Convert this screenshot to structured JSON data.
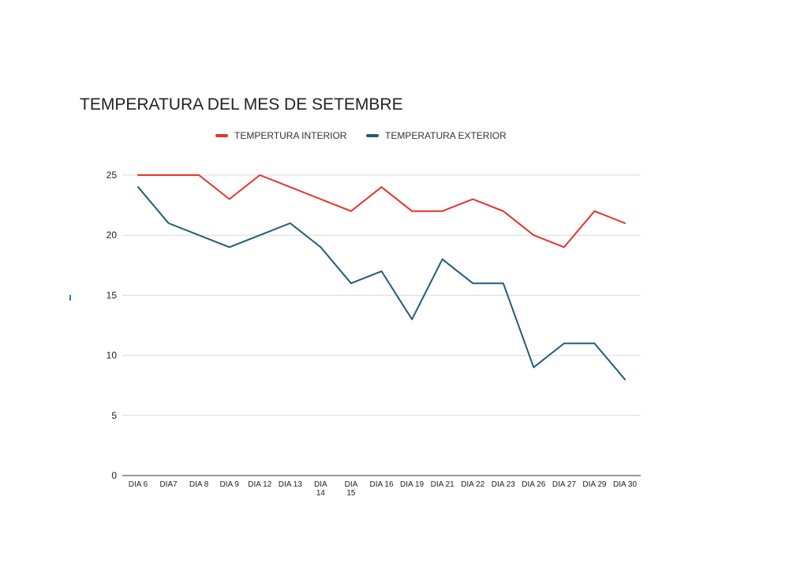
{
  "chart_data": {
    "type": "line",
    "title": "TEMPERATURA DEL MES DE SETEMBRE",
    "xlabel": "",
    "ylabel": "",
    "ylim": [
      0,
      25
    ],
    "yticks": [
      0,
      5,
      10,
      15,
      20,
      25
    ],
    "grid": true,
    "legend_position": "top-center",
    "categories": [
      [
        "DIA 6"
      ],
      [
        "DIA7"
      ],
      [
        "DIA 8"
      ],
      [
        "DIA 9"
      ],
      [
        "DIA 12"
      ],
      [
        "DIA 13"
      ],
      [
        "DIA",
        "14"
      ],
      [
        "DIA",
        "15"
      ],
      [
        "DIA 16"
      ],
      [
        "DIA 19"
      ],
      [
        "DIA 21"
      ],
      [
        "DIA 22"
      ],
      [
        "DIA 23"
      ],
      [
        "DIA 26"
      ],
      [
        "DIA 27"
      ],
      [
        "DIA 29"
      ],
      [
        "DIA 30"
      ]
    ],
    "series": [
      {
        "name": "TEMPERTURA INTERIOR",
        "color": "#e8322c",
        "values": [
          25,
          25,
          25,
          23,
          25,
          24,
          23,
          22,
          24,
          22,
          22,
          23,
          22,
          20,
          19,
          22,
          21
        ]
      },
      {
        "name": "TEMPERATURA EXTERIOR",
        "color": "#215c75",
        "values": [
          24,
          21,
          20,
          19,
          20,
          21,
          19,
          16,
          17,
          13,
          18,
          16,
          16,
          9,
          11,
          11,
          8
        ]
      }
    ]
  }
}
